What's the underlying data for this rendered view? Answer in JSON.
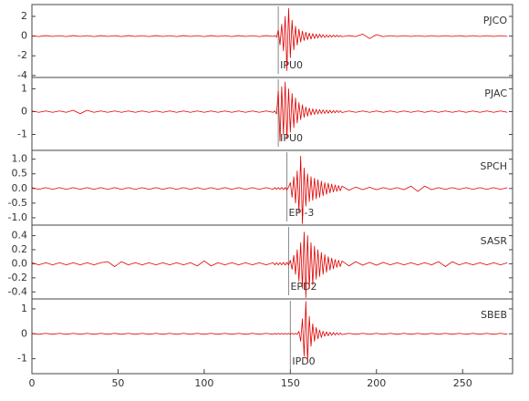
{
  "chart_data": [
    {
      "type": "line",
      "title": "PJCO",
      "color": "#e00000",
      "xlim": [
        0,
        279
      ],
      "ylim": [
        -4.2,
        3.2
      ],
      "yticks": [
        -4,
        -2,
        0,
        2
      ],
      "markers": [
        {
          "x": 143,
          "label": "IPU0"
        }
      ],
      "x": [
        0,
        4,
        8,
        12,
        16,
        20,
        24,
        28,
        32,
        36,
        40,
        44,
        48,
        52,
        56,
        60,
        64,
        68,
        72,
        76,
        80,
        84,
        88,
        92,
        96,
        100,
        104,
        108,
        112,
        116,
        120,
        124,
        128,
        132,
        136,
        140,
        141,
        142,
        143,
        144,
        145,
        146,
        147,
        148,
        149,
        150,
        151,
        152,
        153,
        154,
        155,
        156,
        157,
        158,
        159,
        160,
        161,
        162,
        163,
        164,
        165,
        166,
        167,
        168,
        169,
        170,
        171,
        172,
        173,
        174,
        175,
        176,
        177,
        178,
        179,
        180,
        184,
        188,
        192,
        196,
        200,
        204,
        208,
        212,
        216,
        220,
        224,
        228,
        232,
        236,
        240,
        244,
        248,
        252,
        256,
        260,
        264,
        268,
        272,
        276
      ],
      "values": [
        0.04,
        -0.05,
        0.05,
        -0.04,
        0.04,
        -0.05,
        0.05,
        -0.04,
        0.04,
        -0.05,
        0.05,
        -0.04,
        0.04,
        -0.05,
        0.05,
        -0.04,
        0.04,
        -0.05,
        0.05,
        -0.04,
        0.04,
        -0.05,
        0.05,
        -0.04,
        0.04,
        -0.05,
        0.05,
        -0.04,
        0.04,
        -0.05,
        0.05,
        -0.04,
        0.04,
        -0.05,
        0.05,
        -0.04,
        0.05,
        -0.1,
        0.6,
        -0.9,
        1.2,
        -1.5,
        2.0,
        -3.5,
        2.8,
        -2.2,
        1.6,
        -1.4,
        1.0,
        -0.9,
        0.7,
        -0.6,
        0.5,
        -0.45,
        0.4,
        -0.35,
        0.3,
        -0.3,
        0.25,
        -0.25,
        0.2,
        -0.2,
        0.2,
        -0.15,
        0.15,
        -0.15,
        0.12,
        -0.12,
        0.1,
        -0.1,
        0.1,
        -0.08,
        0.08,
        -0.08,
        0.06,
        -0.06,
        0.05,
        -0.05,
        0.2,
        -0.25,
        0.15,
        -0.05,
        0.04,
        -0.04,
        0.04,
        -0.04,
        0.04,
        -0.04,
        0.04,
        -0.04,
        0.04,
        -0.04,
        0.04,
        -0.04,
        0.04,
        -0.04,
        0.04,
        -0.04,
        0.04,
        -0.04
      ]
    },
    {
      "type": "line",
      "title": "PJAC",
      "color": "#e00000",
      "xlim": [
        0,
        279
      ],
      "ylim": [
        -1.7,
        1.5
      ],
      "yticks": [
        -1,
        0,
        1
      ],
      "markers": [
        {
          "x": 143,
          "label": "IPU0"
        }
      ],
      "x": [
        0,
        4,
        8,
        12,
        16,
        20,
        24,
        28,
        32,
        36,
        40,
        44,
        48,
        52,
        56,
        60,
        64,
        68,
        72,
        76,
        80,
        84,
        88,
        92,
        96,
        100,
        104,
        108,
        112,
        116,
        120,
        124,
        128,
        132,
        136,
        140,
        141,
        142,
        143,
        144,
        145,
        146,
        147,
        148,
        149,
        150,
        151,
        152,
        153,
        154,
        155,
        156,
        157,
        158,
        159,
        160,
        161,
        162,
        163,
        164,
        165,
        166,
        167,
        168,
        169,
        170,
        171,
        172,
        173,
        174,
        175,
        176,
        177,
        178,
        179,
        180,
        184,
        188,
        192,
        196,
        200,
        204,
        208,
        212,
        216,
        220,
        224,
        228,
        232,
        236,
        240,
        244,
        248,
        252,
        256,
        260,
        264,
        268,
        272,
        276
      ],
      "values": [
        0.03,
        -0.03,
        0.03,
        -0.03,
        0.03,
        -0.03,
        0.06,
        -0.09,
        0.06,
        -0.03,
        0.03,
        -0.03,
        0.03,
        -0.03,
        0.03,
        -0.03,
        0.03,
        -0.03,
        0.03,
        -0.03,
        0.03,
        -0.03,
        0.03,
        -0.03,
        0.03,
        -0.03,
        0.03,
        -0.03,
        0.03,
        -0.03,
        0.03,
        -0.03,
        0.03,
        -0.03,
        0.03,
        -0.03,
        0.03,
        -0.1,
        0.9,
        -1.3,
        1.1,
        -1.0,
        1.3,
        -1.2,
        1.0,
        -0.9,
        0.8,
        -0.7,
        0.6,
        -0.5,
        0.4,
        -0.35,
        0.3,
        -0.25,
        0.2,
        -0.2,
        0.15,
        -0.15,
        0.12,
        -0.12,
        0.1,
        -0.1,
        0.09,
        -0.09,
        0.08,
        -0.08,
        0.07,
        -0.07,
        0.06,
        -0.06,
        0.05,
        -0.05,
        0.05,
        -0.04,
        0.04,
        -0.04,
        0.03,
        -0.03,
        0.03,
        -0.03,
        0.03,
        -0.03,
        0.03,
        -0.03,
        0.03,
        -0.03,
        0.03,
        -0.03,
        0.03,
        -0.03,
        0.03,
        -0.03,
        0.03,
        -0.03,
        0.03,
        -0.03,
        0.03,
        -0.03,
        0.03,
        -0.03
      ]
    },
    {
      "type": "line",
      "title": "SPCH",
      "color": "#e00000",
      "xlim": [
        0,
        279
      ],
      "ylim": [
        -1.25,
        1.3
      ],
      "yticks": [
        {
          "value": -1,
          "label": "-1.0"
        },
        -0.5,
        {
          "value": 0,
          "label": "0.0"
        },
        0.5,
        {
          "value": 1,
          "label": "1.0"
        }
      ],
      "markers": [
        {
          "x": 148,
          "label": "EPI-3"
        }
      ],
      "x": [
        0,
        4,
        8,
        12,
        16,
        20,
        24,
        28,
        32,
        36,
        40,
        44,
        48,
        52,
        56,
        60,
        64,
        68,
        72,
        76,
        80,
        84,
        88,
        92,
        96,
        100,
        104,
        108,
        112,
        116,
        120,
        124,
        128,
        132,
        136,
        140,
        141,
        142,
        143,
        144,
        145,
        146,
        147,
        148,
        149,
        150,
        151,
        152,
        153,
        154,
        155,
        156,
        157,
        158,
        159,
        160,
        161,
        162,
        163,
        164,
        165,
        166,
        167,
        168,
        169,
        170,
        171,
        172,
        173,
        174,
        175,
        176,
        177,
        178,
        179,
        180,
        184,
        188,
        192,
        196,
        200,
        204,
        208,
        212,
        216,
        220,
        224,
        228,
        232,
        236,
        240,
        244,
        248,
        252,
        256,
        260,
        264,
        268,
        272,
        276
      ],
      "values": [
        0.03,
        -0.03,
        0.03,
        -0.03,
        0.03,
        -0.03,
        0.03,
        -0.03,
        0.03,
        -0.03,
        0.03,
        -0.03,
        0.03,
        -0.03,
        0.03,
        -0.03,
        0.03,
        -0.03,
        0.03,
        -0.03,
        0.03,
        -0.03,
        0.03,
        -0.03,
        0.03,
        -0.03,
        0.03,
        -0.03,
        0.03,
        -0.03,
        0.03,
        -0.03,
        0.03,
        -0.03,
        0.03,
        -0.03,
        0.03,
        -0.03,
        0.03,
        -0.03,
        0.04,
        -0.04,
        0.03,
        -0.05,
        0.05,
        0.2,
        -0.3,
        0.4,
        -0.5,
        0.6,
        -0.8,
        1.1,
        -1.2,
        0.7,
        -0.6,
        0.5,
        -0.45,
        0.4,
        -0.4,
        0.35,
        -0.35,
        0.3,
        -0.3,
        0.25,
        -0.25,
        0.2,
        -0.2,
        0.18,
        -0.15,
        0.15,
        -0.12,
        0.12,
        -0.1,
        0.1,
        -0.08,
        0.08,
        -0.06,
        0.05,
        -0.04,
        0.04,
        -0.04,
        0.03,
        -0.03,
        0.03,
        -0.04,
        0.08,
        -0.1,
        0.08,
        -0.04,
        0.03,
        -0.03,
        0.03,
        -0.03,
        0.03,
        -0.03,
        0.03,
        -0.03,
        0.03,
        -0.03,
        0.03
      ]
    },
    {
      "type": "line",
      "title": "SASR",
      "color": "#e00000",
      "xlim": [
        0,
        279
      ],
      "ylim": [
        -0.5,
        0.55
      ],
      "yticks": [
        -0.4,
        -0.2,
        {
          "value": 0,
          "label": "0.0"
        },
        0.2,
        0.4
      ],
      "markers": [
        {
          "x": 149,
          "label": "EPD2"
        }
      ],
      "x": [
        0,
        4,
        8,
        12,
        16,
        20,
        24,
        28,
        32,
        36,
        40,
        44,
        48,
        52,
        56,
        60,
        64,
        68,
        72,
        76,
        80,
        84,
        88,
        92,
        96,
        100,
        104,
        108,
        112,
        116,
        120,
        124,
        128,
        132,
        136,
        140,
        141,
        142,
        143,
        144,
        145,
        146,
        147,
        148,
        149,
        150,
        151,
        152,
        153,
        154,
        155,
        156,
        157,
        158,
        159,
        160,
        161,
        162,
        163,
        164,
        165,
        166,
        167,
        168,
        169,
        170,
        171,
        172,
        173,
        174,
        175,
        176,
        177,
        178,
        179,
        180,
        184,
        188,
        192,
        196,
        200,
        204,
        208,
        212,
        216,
        220,
        224,
        228,
        232,
        236,
        240,
        244,
        248,
        252,
        256,
        260,
        264,
        268,
        272,
        276
      ],
      "values": [
        0.015,
        -0.015,
        0.015,
        -0.015,
        0.015,
        -0.015,
        0.015,
        -0.015,
        0.015,
        -0.015,
        0.015,
        0.03,
        -0.04,
        0.03,
        -0.015,
        0.015,
        -0.015,
        0.015,
        -0.015,
        0.015,
        -0.015,
        0.015,
        -0.015,
        0.015,
        -0.03,
        0.04,
        -0.03,
        0.015,
        -0.015,
        0.015,
        -0.015,
        0.015,
        -0.015,
        0.015,
        -0.015,
        0.015,
        -0.015,
        0.015,
        -0.015,
        0.015,
        -0.015,
        0.02,
        -0.02,
        0.02,
        -0.02,
        0.05,
        -0.08,
        0.12,
        -0.15,
        0.2,
        -0.25,
        0.3,
        -0.35,
        0.45,
        -0.48,
        0.4,
        -0.35,
        0.3,
        -0.3,
        0.25,
        -0.22,
        0.2,
        -0.18,
        0.16,
        -0.15,
        0.13,
        -0.12,
        0.1,
        -0.09,
        0.08,
        -0.07,
        0.06,
        -0.05,
        0.05,
        -0.04,
        0.04,
        -0.03,
        0.03,
        -0.02,
        0.02,
        -0.02,
        0.02,
        -0.015,
        0.015,
        -0.015,
        0.015,
        -0.015,
        0.015,
        -0.015,
        0.03,
        -0.04,
        0.03,
        -0.015,
        0.015,
        -0.015,
        0.015,
        -0.015,
        0.015,
        -0.015,
        0.015
      ]
    },
    {
      "type": "line",
      "title": "SBEB",
      "color": "#e00000",
      "xlim": [
        0,
        279
      ],
      "ylim": [
        -1.6,
        1.4
      ],
      "yticks": [
        -1,
        0,
        1
      ],
      "xticks": [
        0,
        50,
        100,
        150,
        200,
        250
      ],
      "markers": [
        {
          "x": 150,
          "label": "IPD0"
        }
      ],
      "x": [
        0,
        4,
        8,
        12,
        16,
        20,
        24,
        28,
        32,
        36,
        40,
        44,
        48,
        52,
        56,
        60,
        64,
        68,
        72,
        76,
        80,
        84,
        88,
        92,
        96,
        100,
        104,
        108,
        112,
        116,
        120,
        124,
        128,
        132,
        136,
        140,
        141,
        142,
        143,
        144,
        145,
        146,
        147,
        148,
        149,
        150,
        151,
        152,
        153,
        154,
        155,
        156,
        157,
        158,
        159,
        160,
        161,
        162,
        163,
        164,
        165,
        166,
        167,
        168,
        169,
        170,
        171,
        172,
        173,
        174,
        175,
        176,
        177,
        178,
        179,
        180,
        184,
        188,
        192,
        196,
        200,
        204,
        208,
        212,
        216,
        220,
        224,
        228,
        232,
        236,
        240,
        244,
        248,
        252,
        256,
        260,
        264,
        268,
        272,
        276
      ],
      "values": [
        0.02,
        -0.02,
        0.02,
        -0.02,
        0.02,
        -0.02,
        0.02,
        -0.02,
        0.02,
        -0.02,
        0.02,
        -0.02,
        0.02,
        -0.02,
        0.02,
        -0.02,
        0.02,
        -0.02,
        0.02,
        -0.02,
        0.02,
        -0.02,
        0.02,
        -0.02,
        0.02,
        -0.02,
        0.02,
        -0.02,
        0.02,
        -0.02,
        0.02,
        -0.02,
        0.02,
        -0.02,
        0.02,
        -0.02,
        0.02,
        -0.02,
        0.02,
        -0.02,
        0.02,
        -0.02,
        0.02,
        -0.02,
        0.02,
        -0.02,
        0.02,
        -0.02,
        0.02,
        -0.02,
        0.1,
        -0.3,
        0.6,
        -0.9,
        1.3,
        -1.1,
        0.7,
        -0.5,
        0.4,
        -0.3,
        0.25,
        -0.2,
        0.15,
        -0.15,
        0.1,
        -0.1,
        0.08,
        -0.08,
        0.06,
        -0.06,
        0.05,
        -0.05,
        0.04,
        -0.04,
        0.03,
        -0.03,
        0.02,
        -0.02,
        0.02,
        -0.02,
        0.02,
        -0.02,
        0.02,
        -0.02,
        0.02,
        -0.02,
        0.02,
        -0.02,
        0.02,
        -0.02,
        0.02,
        -0.02,
        0.02,
        -0.02,
        0.02,
        -0.02,
        0.02,
        -0.02,
        0.02,
        -0.02
      ]
    }
  ]
}
